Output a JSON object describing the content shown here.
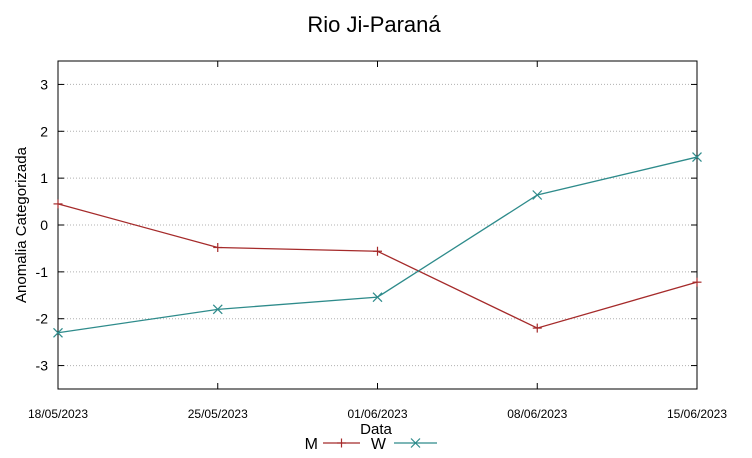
{
  "chart_data": {
    "type": "line",
    "title": "Rio Ji-Paraná",
    "xlabel": "Data",
    "ylabel": "Anomalia Categorizada",
    "categories": [
      "18/05/2023",
      "25/05/2023",
      "01/06/2023",
      "08/06/2023",
      "15/06/2023"
    ],
    "ylim": [
      -3.5,
      3.5
    ],
    "yticks": [
      3,
      2,
      1,
      0,
      -1,
      -2,
      -3
    ],
    "grid": "horizontal dotted",
    "legend": "bottom-center",
    "series": [
      {
        "name": "M",
        "color": "#a52a2a",
        "marker": "plus",
        "values": [
          0.45,
          -0.48,
          -0.56,
          -2.2,
          -1.22
        ]
      },
      {
        "name": "W",
        "color": "#2e8b8b",
        "marker": "cross",
        "values": [
          -2.3,
          -1.8,
          -1.54,
          0.64,
          1.45
        ]
      }
    ]
  }
}
